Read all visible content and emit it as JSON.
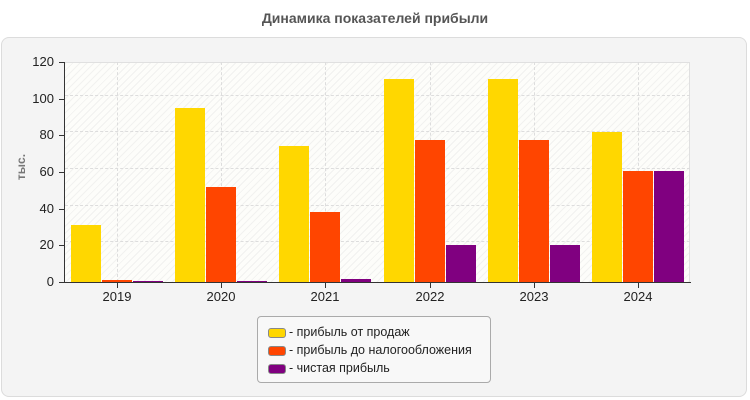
{
  "chart_data": {
    "type": "bar",
    "title": "Динамика показателей прибыли",
    "xlabel": "",
    "ylabel": "тыс.",
    "ylim": [
      0,
      120
    ],
    "yticks": [
      0,
      20,
      40,
      60,
      80,
      100,
      120
    ],
    "grid": true,
    "legend_position": "bottom",
    "categories": [
      "2019",
      "2020",
      "2021",
      "2022",
      "2023",
      "2024"
    ],
    "series": [
      {
        "name": "прибыль от продаж",
        "color": "#FFD700",
        "values": [
          31,
          95,
          74,
          111,
          111,
          82
        ]
      },
      {
        "name": "прибыль до налогообложения",
        "color": "#FF4500",
        "values": [
          1,
          52,
          38,
          77.5,
          77.5,
          60.5
        ]
      },
      {
        "name": "чистая прибыль",
        "color": "#800080",
        "values": [
          0.8,
          0.6,
          1.5,
          20,
          20,
          60.5
        ]
      }
    ]
  },
  "legend": {
    "items": [
      {
        "label": "- прибыль от продаж",
        "color": "#FFD700"
      },
      {
        "label": "- прибыль до налогообложения",
        "color": "#FF4500"
      },
      {
        "label": "- чистая прибыль",
        "color": "#800080"
      }
    ]
  }
}
